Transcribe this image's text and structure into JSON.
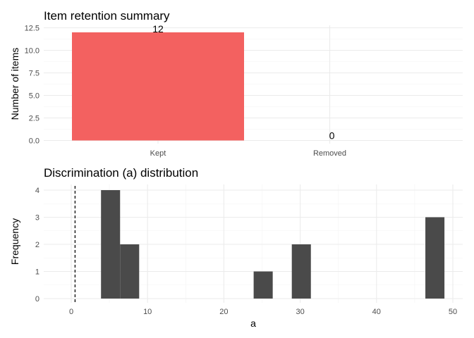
{
  "chart_data": [
    {
      "type": "bar",
      "title": "Item retention summary",
      "xlabel": "",
      "ylabel": "Number of items",
      "categories": [
        "Kept",
        "Removed"
      ],
      "values": [
        12,
        0
      ],
      "data_labels": [
        "12",
        "0"
      ],
      "ylim": [
        0,
        12.5
      ],
      "yticks": [
        "0.0",
        "2.5",
        "5.0",
        "7.5",
        "10.0",
        "12.5"
      ],
      "colors": [
        "#f36160",
        "#00bfc4"
      ],
      "grid": true
    },
    {
      "type": "bar",
      "subtype": "histogram",
      "title": "Discrimination (a) distribution",
      "xlabel": "a",
      "ylabel": "Frequency",
      "bins": [
        {
          "x0": 3.9,
          "x1": 6.4,
          "count": 4
        },
        {
          "x0": 6.4,
          "x1": 8.9,
          "count": 2
        },
        {
          "x0": 23.9,
          "x1": 26.4,
          "count": 1
        },
        {
          "x0": 28.9,
          "x1": 31.4,
          "count": 2
        },
        {
          "x0": 46.4,
          "x1": 48.9,
          "count": 3
        }
      ],
      "reference_line": {
        "x": 0.5,
        "style": "dashed"
      },
      "xlim": [
        -3.5,
        51.5
      ],
      "ylim": [
        0,
        4.2
      ],
      "xticks": [
        "0",
        "10",
        "20",
        "30",
        "40",
        "50"
      ],
      "yticks": [
        "0",
        "1",
        "2",
        "3",
        "4"
      ],
      "bar_color": "#4a4a4a",
      "grid": true
    }
  ]
}
